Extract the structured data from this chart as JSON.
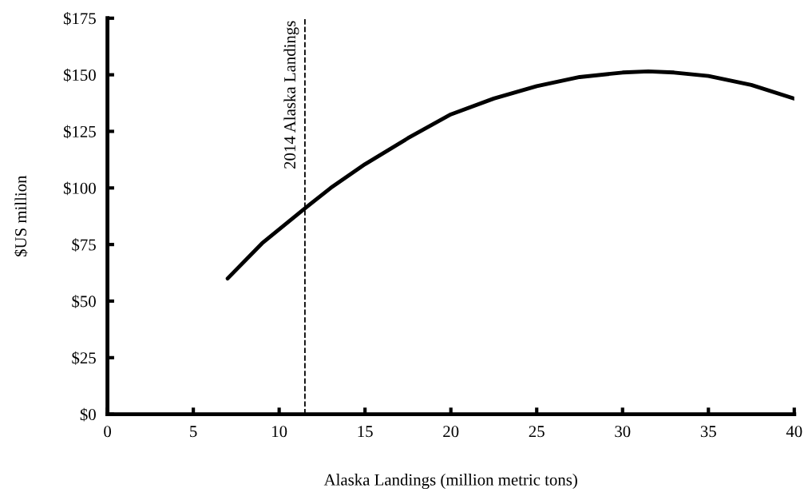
{
  "chart_data": {
    "type": "line",
    "xlabel": "Alaska Landings (million metric tons)",
    "ylabel": "$US million",
    "series": [
      {
        "color": "#000000",
        "x": [
          7,
          9,
          11.5,
          13,
          15,
          17.5,
          20,
          22.5,
          25,
          27.5,
          30,
          31.5,
          33,
          35,
          37.5,
          40
        ],
        "values": [
          60,
          75.5,
          91,
          100,
          110.5,
          122,
          132.5,
          139.5,
          145,
          149,
          151,
          151.5,
          151,
          149.5,
          145.5,
          139.5
        ]
      }
    ],
    "xlim": [
      0,
      40
    ],
    "xticks": [
      0,
      5,
      10,
      15,
      20,
      25,
      30,
      35,
      40
    ],
    "ylim": [
      0,
      175
    ],
    "yticks": [
      {
        "value": 0,
        "label": "$0"
      },
      {
        "value": 25,
        "label": "$25"
      },
      {
        "value": 50,
        "label": "$50"
      },
      {
        "value": 75,
        "label": "$75"
      },
      {
        "value": 100,
        "label": "$100"
      },
      {
        "value": 125,
        "label": "$125"
      },
      {
        "value": 150,
        "label": "$150"
      },
      {
        "value": 175,
        "label": "$175"
      }
    ],
    "ref_lines": [
      {
        "axis": "x",
        "value": 11.5,
        "label": "2014 Alaska Landings",
        "color": "#000000",
        "line_style": "dashed"
      }
    ],
    "grid": false,
    "marker": "none",
    "line_style": "solid"
  }
}
